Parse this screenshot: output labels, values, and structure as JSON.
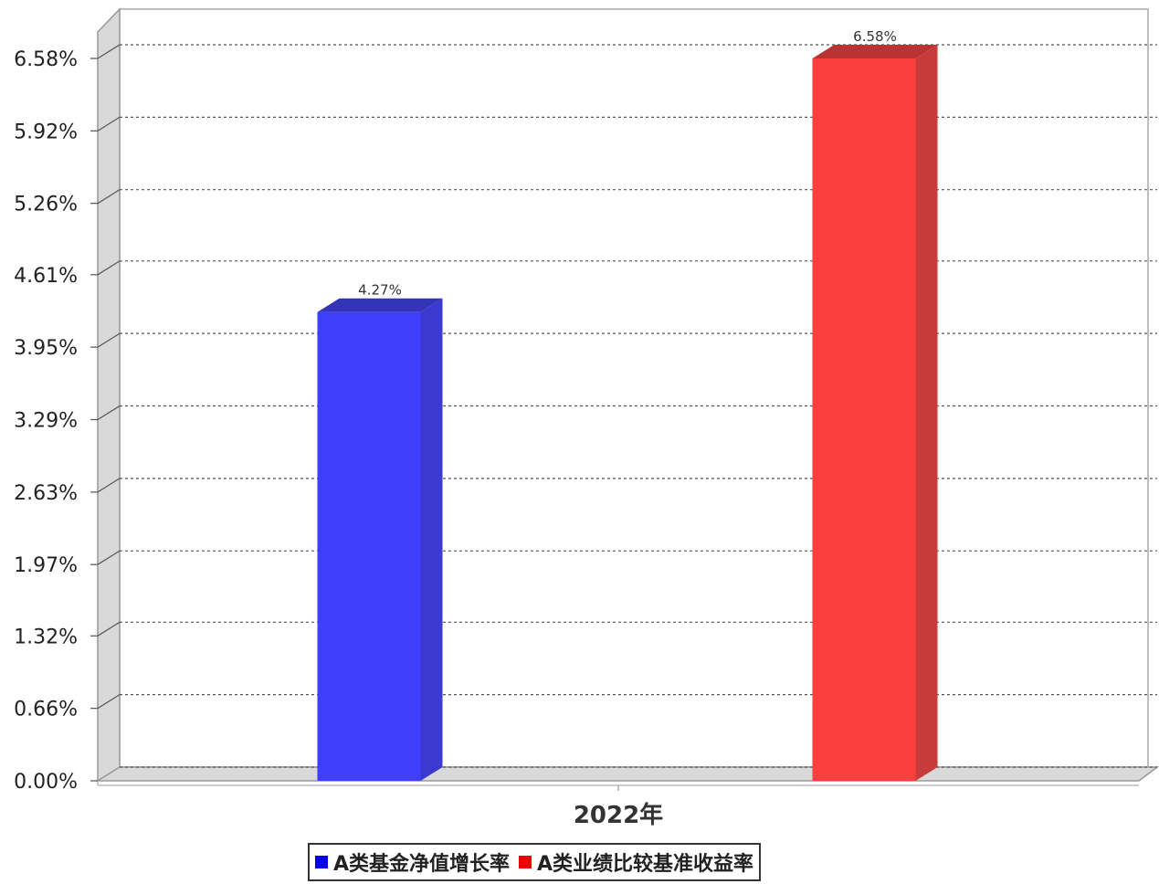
{
  "chart_data": {
    "type": "bar",
    "categories": [
      "2022年"
    ],
    "series": [
      {
        "name": "A类基金净值增长率",
        "values": [
          4.27
        ],
        "value_labels": [
          "4.27%"
        ],
        "color": "#3e3efc",
        "side_color": "#3a3ad0",
        "top_color": "#3434b8"
      },
      {
        "name": "A类业绩比较基准收益率",
        "values": [
          6.58
        ],
        "value_labels": [
          "6.58%"
        ],
        "color": "#fc3e3e",
        "side_color": "#c83b3b",
        "top_color": "#b83434"
      }
    ],
    "yticks": [
      0.0,
      0.66,
      1.32,
      1.97,
      2.63,
      3.29,
      3.95,
      4.61,
      5.26,
      5.92,
      6.58
    ],
    "ytick_labels": [
      "0.00%",
      "0.66%",
      "1.32%",
      "1.97%",
      "2.63%",
      "3.29%",
      "3.95%",
      "4.61%",
      "5.26%",
      "5.92%",
      "6.58%"
    ],
    "ylim": [
      0,
      6.58
    ],
    "grid": true,
    "legend_position": "bottom-center",
    "title": "",
    "xlabel": "",
    "ylabel": ""
  },
  "legend": {
    "items": [
      {
        "label": "A类基金净值增长率",
        "color": "#0000ee"
      },
      {
        "label": "A类业绩比较基准收益率",
        "color": "#ee0000"
      }
    ]
  }
}
